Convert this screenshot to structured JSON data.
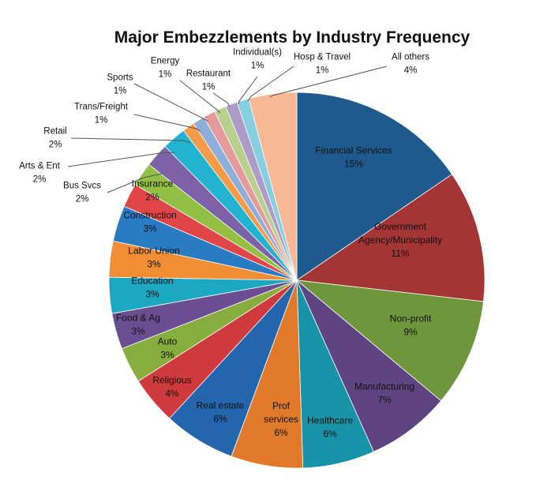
{
  "chart_data": {
    "type": "pie",
    "title": "Major Embezzlements by Industry Frequency",
    "start_angle_deg": 0,
    "direction": "clockwise",
    "categories": [
      "Financial Services",
      "Government Agency/Municipality",
      "Non-profit",
      "Manufacturing",
      "Healthcare",
      "Prof services",
      "Real estate",
      "Religious",
      "Auto",
      "Food & Ag",
      "Education",
      "Labor Union",
      "Construction",
      "Insurance",
      "Bus Svcs",
      "Arts & Ent",
      "Retail",
      "Trans/Freight",
      "Sports",
      "Energy",
      "Restaurant",
      "Individual(s)",
      "Hosp & Travel",
      "All others"
    ],
    "values": [
      15,
      11,
      9,
      7,
      6,
      6,
      6,
      4,
      3,
      3,
      3,
      3,
      3,
      2,
      2,
      2,
      2,
      1,
      1,
      1,
      1,
      1,
      1,
      4
    ],
    "labels": [
      [
        "Financial Services",
        "15%"
      ],
      [
        "Government",
        "Agency/Municipality",
        "11%"
      ],
      [
        "Non-profit",
        "9%"
      ],
      [
        "Manufacturing",
        "7%"
      ],
      [
        "Healthcare",
        "6%"
      ],
      [
        "Prof",
        "services",
        "6%"
      ],
      [
        "Real estate",
        "6%"
      ],
      [
        "Religious",
        "4%"
      ],
      [
        "Auto",
        "3%"
      ],
      [
        "Food & Ag",
        "3%"
      ],
      [
        "Education",
        "3%"
      ],
      [
        "Labor Union",
        "3%"
      ],
      [
        "Construction",
        "3%"
      ],
      [
        "Insurance",
        "2%"
      ],
      [
        "Bus Svcs",
        "2%"
      ],
      [
        "Arts & Ent",
        "2%"
      ],
      [
        "Retail",
        "2%"
      ],
      [
        "Trans/Freight",
        "1%"
      ],
      [
        "Sports",
        "1%"
      ],
      [
        "Energy",
        "1%"
      ],
      [
        "Restaurant",
        "1%"
      ],
      [
        "Individual(s)",
        "1%"
      ],
      [
        "Hosp & Travel",
        "1%"
      ],
      [
        "All others",
        "4%"
      ]
    ],
    "colors": [
      "#1f5a8e",
      "#a33535",
      "#6f963c",
      "#5e4582",
      "#1993a8",
      "#e07a2a",
      "#2466ad",
      "#cf3b3d",
      "#87ad3e",
      "#6a4e92",
      "#1ca7c2",
      "#f08d35",
      "#2b7bc2",
      "#e04648",
      "#94bf45",
      "#7e62a8",
      "#21b3d0",
      "#f59a48",
      "#8faed9",
      "#e59a9c",
      "#b8d08e",
      "#ad9cc9",
      "#86cfe0",
      "#f8b895"
    ],
    "legend": "none"
  }
}
